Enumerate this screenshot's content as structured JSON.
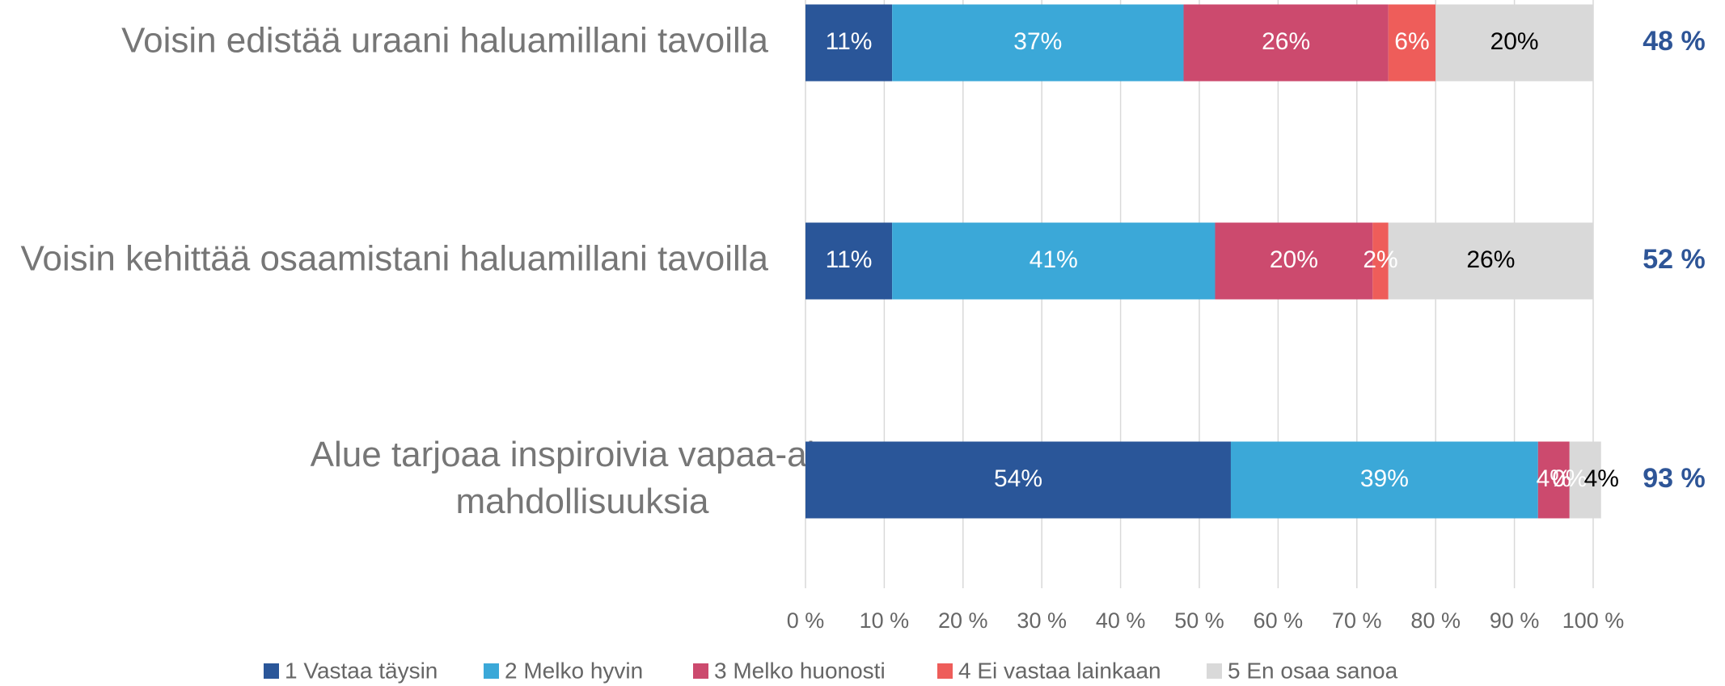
{
  "chart_data": {
    "type": "stacked_barh",
    "categories": [
      "Voisin edistää uraani haluamillani tavoilla",
      "Voisin kehittää osaamistani haluamillani tavoilla",
      "Alue tarjoaa inspiroivia vapaa-ajan mahdollisuuksia"
    ],
    "series": [
      {
        "name": "1 Vastaa täysin",
        "color": "#2a5699",
        "label_color": "#ffffff",
        "values": [
          11,
          11,
          54
        ],
        "value_labels": [
          "11%",
          "11%",
          "54%"
        ]
      },
      {
        "name": "2 Melko hyvin",
        "color": "#3ba8d8",
        "label_color": "#ffffff",
        "values": [
          37,
          41,
          39
        ],
        "value_labels": [
          "37%",
          "41%",
          "39%"
        ]
      },
      {
        "name": "3 Melko huonosti",
        "color": "#cc4a6e",
        "label_color": "#ffffff",
        "values": [
          26,
          20,
          4
        ],
        "value_labels": [
          "26%",
          "20%",
          "4%"
        ]
      },
      {
        "name": "4 Ei vastaa lainkaan",
        "color": "#ee5d5a",
        "label_color": "#ffffff",
        "values": [
          6,
          2,
          0
        ],
        "value_labels": [
          "6%",
          "2%",
          "0%"
        ]
      },
      {
        "name": "5 En osaa sanoa",
        "color": "#d9d9d9",
        "label_color": "#000000",
        "values": [
          20,
          26,
          4
        ],
        "value_labels": [
          "20%",
          "26%",
          "4%"
        ]
      }
    ],
    "totals": {
      "values": [
        48,
        52,
        93
      ],
      "value_labels": [
        "48 %",
        "52 %",
        "93 %"
      ],
      "color": "#2e5597"
    },
    "xlim": [
      0,
      100
    ],
    "xticks": [
      {
        "value": 0,
        "label": "0 %"
      },
      {
        "value": 10,
        "label": "10 %"
      },
      {
        "value": 20,
        "label": "20 %"
      },
      {
        "value": 30,
        "label": "30 %"
      },
      {
        "value": 40,
        "label": "40 %"
      },
      {
        "value": 50,
        "label": "50 %"
      },
      {
        "value": 60,
        "label": "60 %"
      },
      {
        "value": 70,
        "label": "70 %"
      },
      {
        "value": 80,
        "label": "80 %"
      },
      {
        "value": 90,
        "label": "90 %"
      },
      {
        "value": 100,
        "label": "100 %"
      }
    ],
    "grid": true,
    "legend": "bottom"
  }
}
